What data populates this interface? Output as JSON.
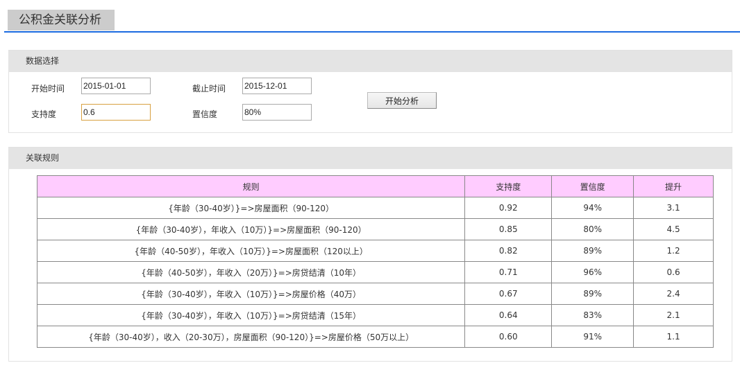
{
  "page": {
    "title": "公积金关联分析"
  },
  "data_select": {
    "header": "数据选择",
    "start_label": "开始时间",
    "start_value": "2015-01-01",
    "end_label": "截止时间",
    "end_value": "2015-12-01",
    "support_label": "支持度",
    "support_value": "0.6",
    "confidence_label": "置信度",
    "confidence_value": "80%",
    "analyze_button": "开始分析"
  },
  "rules": {
    "header": "关联规则",
    "columns": [
      "规则",
      "支持度",
      "置信度",
      "提升"
    ],
    "rows": [
      [
        "{年龄（30-40岁）}=>房屋面积（90-120）",
        "0.92",
        "94%",
        "3.1"
      ],
      [
        "{年龄（30-40岁），年收入（10万）}=>房屋面积（90-120）",
        "0.85",
        "80%",
        "4.5"
      ],
      [
        "{年龄（40-50岁），年收入（10万）}=>房屋面积（120以上）",
        "0.82",
        "89%",
        "1.2"
      ],
      [
        "{年龄（40-50岁），年收入（20万）}=>房贷结清（10年）",
        "0.71",
        "96%",
        "0.6"
      ],
      [
        "{年龄（30-40岁），年收入（10万）}=>房屋价格（40万）",
        "0.67",
        "89%",
        "2.4"
      ],
      [
        "{年龄（30-40岁），年收入（10万）}=>房贷结清（15年）",
        "0.64",
        "83%",
        "2.1"
      ],
      [
        "{年龄（30-40岁），收入（20-30万），房屋面积（90-120）}=>房屋价格（50万以上）",
        "0.60",
        "91%",
        "1.1"
      ]
    ]
  },
  "colors": {
    "accent": "#1a6ae0",
    "table_header": "#ffccff",
    "panel_header": "#e4e4e4"
  }
}
